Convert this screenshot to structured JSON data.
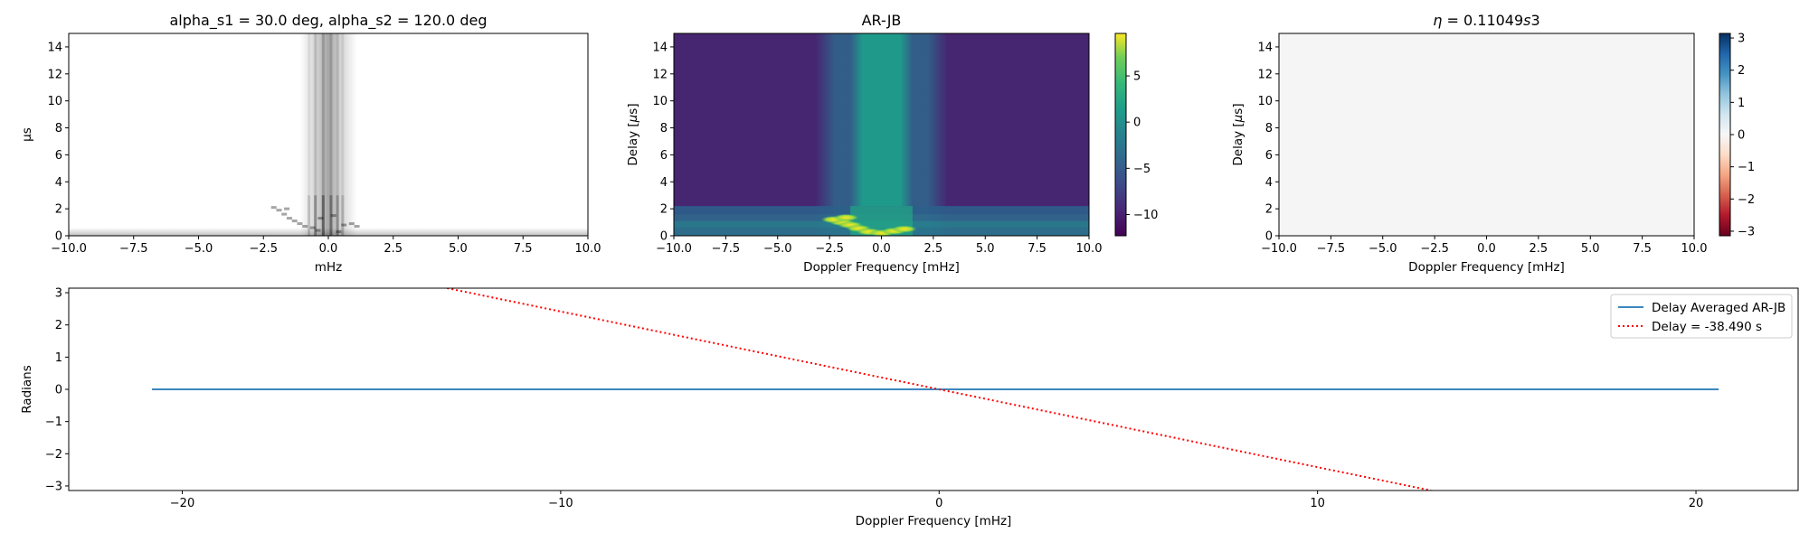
{
  "chart_data": [
    {
      "type": "heatmap",
      "title": "alpha_s1 = 30.0 deg, alpha_s2 = 120.0 deg",
      "xlabel": "mHz",
      "ylabel": "μs",
      "xlim": [
        -10,
        10
      ],
      "ylim": [
        0,
        15
      ],
      "xticks": [
        "−10.0",
        "−7.5",
        "−5.0",
        "−2.5",
        "0.0",
        "2.5",
        "5.0",
        "7.5",
        "10.0"
      ],
      "yticks": [
        "0",
        "2",
        "4",
        "6",
        "8",
        "10",
        "12",
        "14"
      ],
      "colormap": "Greys",
      "features": [
        {
          "kind": "vertical-band",
          "x_center": 0.0,
          "half_width": 0.7,
          "intensity": 0.45
        },
        {
          "kind": "vertical-core",
          "x_center": 0.0,
          "half_width": 0.35,
          "intensity": 0.85
        },
        {
          "kind": "horizontal-floor",
          "y_max": 0.5,
          "intensity": 0.35
        },
        {
          "kind": "arc-speckle",
          "x_range": [
            -2.0,
            1.2
          ],
          "y_range": [
            0,
            2.5
          ]
        }
      ]
    },
    {
      "type": "heatmap",
      "title": "AR-JB",
      "xlabel": "Doppler Frequency [mHz]",
      "ylabel": "Delay [$\\mu$s]",
      "xlim": [
        -10,
        10
      ],
      "ylim": [
        0,
        15
      ],
      "xticks": [
        "−10.0",
        "−7.5",
        "−5.0",
        "−2.5",
        "0.0",
        "2.5",
        "5.0",
        "7.5",
        "10.0"
      ],
      "yticks": [
        "0",
        "2",
        "4",
        "6",
        "8",
        "10",
        "12",
        "14"
      ],
      "colormap": "viridis",
      "colorbar": {
        "range": [
          -12.3,
          9.6
        ],
        "ticks": [
          5,
          0,
          -5,
          -10
        ],
        "tick_labels": [
          "5",
          "0",
          "−5",
          "−10"
        ]
      },
      "background_value": -11,
      "features": [
        {
          "kind": "vertical-band",
          "x_range": [
            -3,
            3
          ],
          "value": -5
        },
        {
          "kind": "vertical-core",
          "x_range": [
            -1.2,
            1.2
          ],
          "value": -1
        },
        {
          "kind": "horizontal-band",
          "y_range": [
            0,
            2.2
          ],
          "value": -3
        },
        {
          "kind": "bright-arcs",
          "x_range": [
            -2.5,
            2.0
          ],
          "y_range": [
            0,
            1.5
          ],
          "value": 8
        }
      ]
    },
    {
      "type": "heatmap",
      "title": "$\\eta = 0.11049 s3$",
      "xlabel": "Doppler Frequency [mHz]",
      "ylabel": "Delay [$\\mu$s]",
      "xlim": [
        -10,
        10
      ],
      "ylim": [
        0,
        15
      ],
      "xticks": [
        "−10.0",
        "−7.5",
        "−5.0",
        "−2.5",
        "0.0",
        "2.5",
        "5.0",
        "7.5",
        "10.0"
      ],
      "yticks": [
        "0",
        "2",
        "4",
        "6",
        "8",
        "10",
        "12",
        "14"
      ],
      "colormap": "RdBu",
      "colorbar": {
        "range": [
          -3.14159,
          3.14159
        ],
        "ticks": [
          3,
          2,
          1,
          0,
          -1,
          -2,
          -3
        ],
        "tick_labels": [
          "3",
          "2",
          "1",
          "0",
          "−1",
          "−2",
          "−3"
        ]
      },
      "fill_value": 0
    },
    {
      "type": "line",
      "title": "",
      "xlabel": "Doppler Frequency [mHz]",
      "ylabel": "Radians",
      "xlim": [
        -23.0,
        22.7
      ],
      "ylim": [
        -3.14159,
        3.14159
      ],
      "xticks": [
        "−20",
        "−10",
        "0",
        "10",
        "20"
      ],
      "yticks": [
        "3",
        "2",
        "1",
        "0",
        "−1",
        "−2",
        "−3"
      ],
      "legend_position": "top-right",
      "series": [
        {
          "name": "Delay Averaged  AR-JB",
          "color": "#1f77b4",
          "style": "solid",
          "x": [
            -20.8,
            20.6
          ],
          "y": [
            0,
            0
          ]
        },
        {
          "name": "Delay = -38.490 s",
          "color": "#ff0000",
          "style": "dotted",
          "x": [
            -13.0,
            13.0
          ],
          "y": [
            3.14159,
            -3.14159
          ]
        }
      ]
    }
  ]
}
